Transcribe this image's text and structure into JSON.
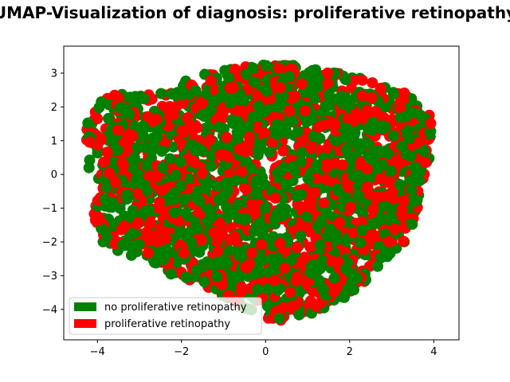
{
  "chart_data": {
    "type": "scatter",
    "title": "UMAP-Visualization of diagnosis: proliferative retinopathy",
    "xlabel": "",
    "ylabel": "",
    "xlim": [
      -4.8,
      4.6
    ],
    "ylim": [
      -4.9,
      3.8
    ],
    "xticks": [
      -4,
      -2,
      0,
      2,
      4
    ],
    "yticks": [
      -4,
      -3,
      -2,
      -1,
      0,
      1,
      2,
      3
    ],
    "xtick_labels": [
      "−4",
      "−2",
      "0",
      "2",
      "4"
    ],
    "ytick_labels": [
      "−4",
      "−3",
      "−2",
      "−1",
      "0",
      "1",
      "2",
      "3"
    ],
    "legend_position": "lower-left",
    "grid": false,
    "series": [
      {
        "name": "no proliferative retinopathy",
        "color": "#008000"
      },
      {
        "name": "proliferative retinopathy",
        "color": "#ff0000"
      }
    ],
    "point_cloud": {
      "n_points": 2600,
      "red_fraction": 0.4,
      "shape": "blob spanning x from about -4.4 to 4.0 and y from about -4.5 to 3.3"
    }
  }
}
